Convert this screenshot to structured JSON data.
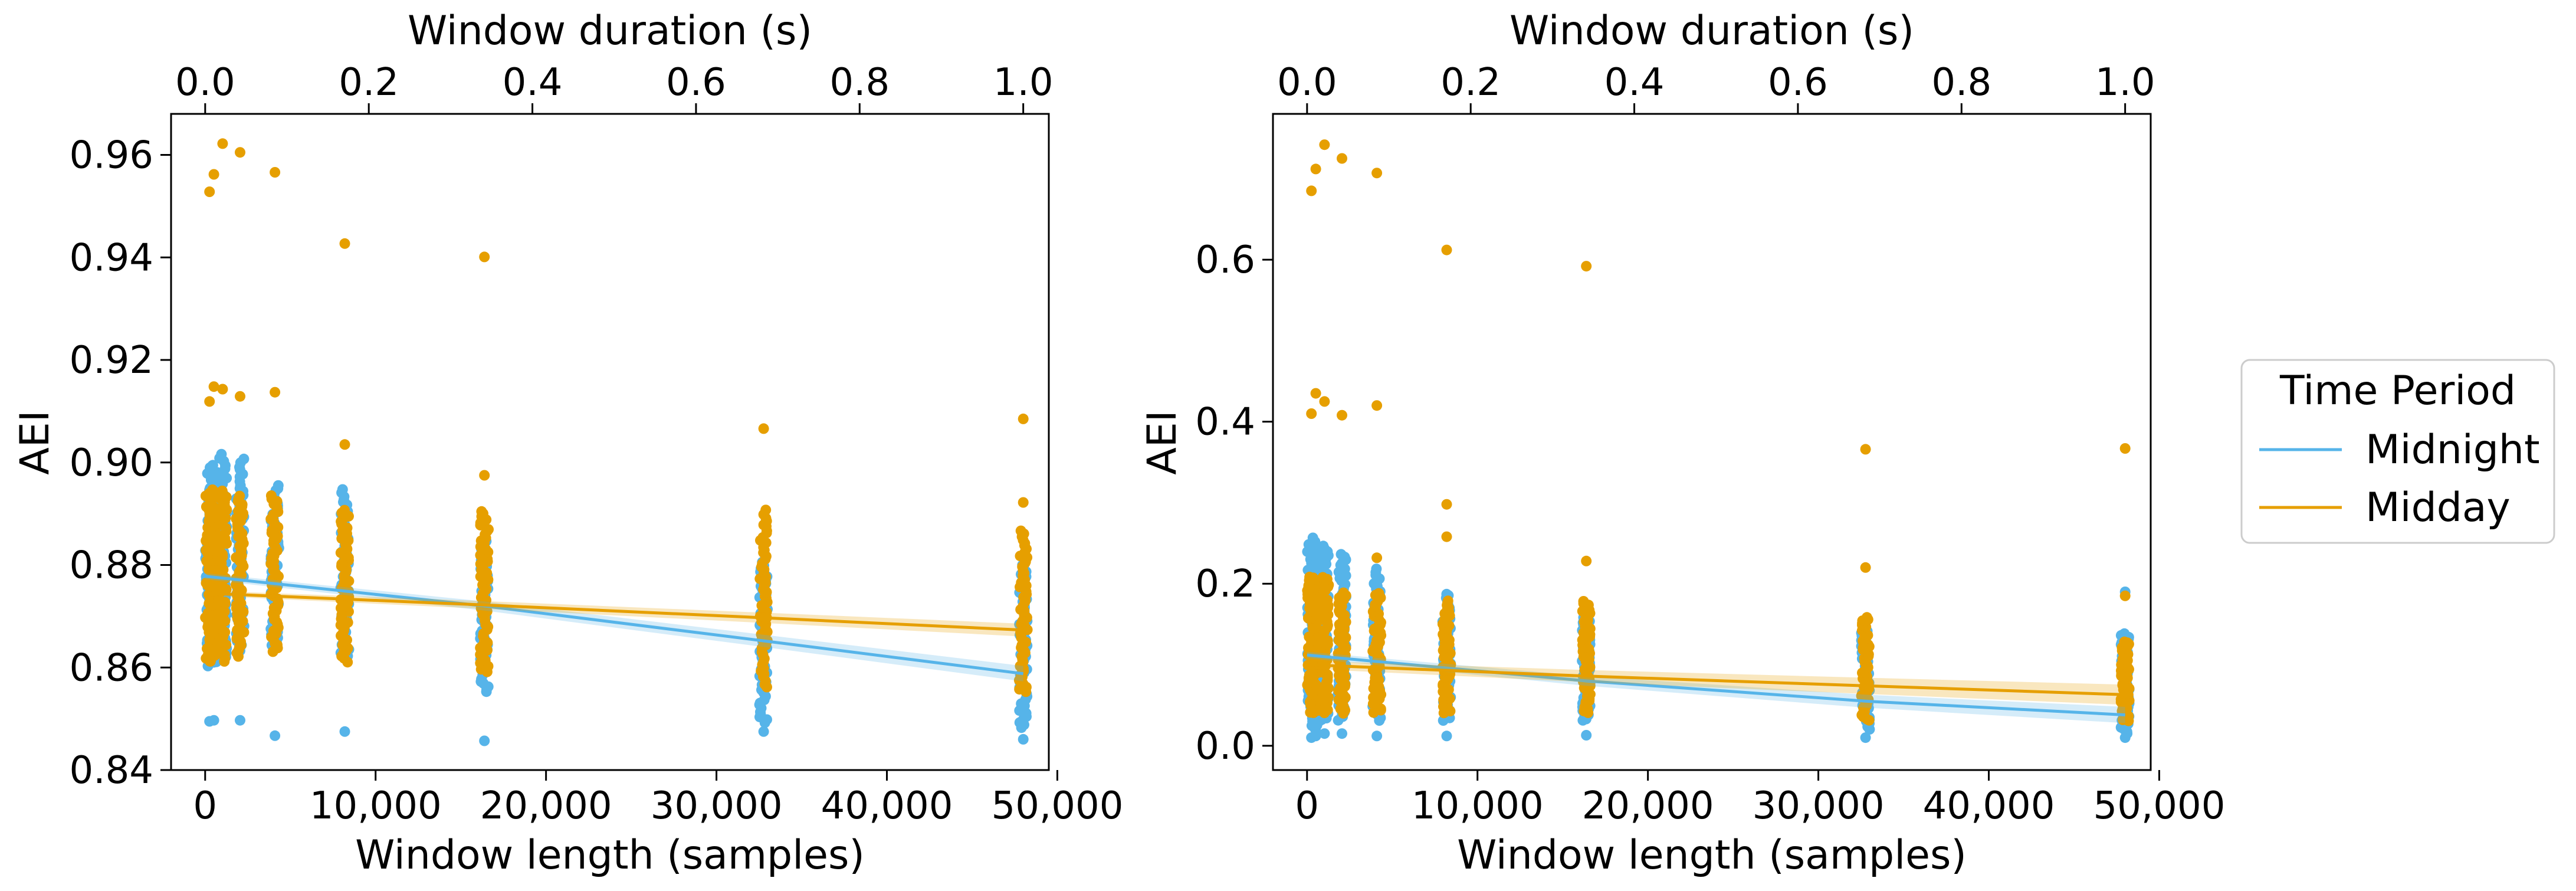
{
  "colors": {
    "midnight": "#56B4E9",
    "midday": "#E69F00"
  },
  "legend": {
    "title": "Time Period",
    "placement": "right",
    "items": [
      {
        "label": "Midnight",
        "color": "#56B4E9"
      },
      {
        "label": "Midday",
        "color": "#E69F00"
      }
    ]
  },
  "chart_data": [
    {
      "type": "scatter",
      "xlabel": "Window length (samples)",
      "x2label": "Window duration (s)",
      "ylabel": "AEI",
      "xlim": [
        -2000,
        49500
      ],
      "ylim": [
        0.84,
        0.968
      ],
      "x2lim": [
        -0.0417,
        1.03125
      ],
      "xticks": [
        0,
        10000,
        20000,
        30000,
        40000,
        50000
      ],
      "xtick_labels": [
        "0",
        "10,000",
        "20,000",
        "30,000",
        "40,000",
        "50,000"
      ],
      "x2ticks": [
        0.0,
        0.2,
        0.4,
        0.6,
        0.8,
        1.0
      ],
      "x2tick_labels": [
        "0.0",
        "0.2",
        "0.4",
        "0.6",
        "0.8",
        "1.0"
      ],
      "yticks": [
        0.84,
        0.86,
        0.88,
        0.9,
        0.92,
        0.94,
        0.96
      ],
      "ytick_labels": [
        "0.84",
        "0.86",
        "0.88",
        "0.90",
        "0.92",
        "0.94",
        "0.96"
      ],
      "grid": false,
      "series": [
        {
          "name": "Midnight",
          "color": "#56B4E9",
          "columns": [
            {
              "x": 256,
              "range": [
                0.86,
                0.9
              ],
              "outliers": [
                0.8495
              ]
            },
            {
              "x": 512,
              "range": [
                0.861,
                0.9
              ],
              "outliers": [
                0.8497
              ]
            },
            {
              "x": 1024,
              "range": [
                0.862,
                0.902
              ],
              "outliers": []
            },
            {
              "x": 2048,
              "range": [
                0.863,
                0.901
              ],
              "outliers": [
                0.8497
              ]
            },
            {
              "x": 4096,
              "range": [
                0.864,
                0.896
              ],
              "outliers": [
                0.8467
              ]
            },
            {
              "x": 8192,
              "range": [
                0.862,
                0.895
              ],
              "outliers": [
                0.8475
              ]
            },
            {
              "x": 16384,
              "range": [
                0.855,
                0.885
              ],
              "outliers": [
                0.8457
              ]
            },
            {
              "x": 32768,
              "range": [
                0.849,
                0.881
              ],
              "outliers": [
                0.8475
              ]
            },
            {
              "x": 48000,
              "range": [
                0.848,
                0.881
              ],
              "outliers": [
                0.846
              ]
            }
          ],
          "fit": {
            "x": [
              0,
              16384,
              32768,
              48000
            ],
            "y": [
              0.8778,
              0.872,
              0.8652,
              0.8588
            ],
            "ci": 0.0012
          }
        },
        {
          "name": "Midday",
          "color": "#E69F00",
          "columns": [
            {
              "x": 256,
              "range": [
                0.861,
                0.895
              ],
              "outliers": [
                0.9528,
                0.9119
              ]
            },
            {
              "x": 512,
              "range": [
                0.861,
                0.895
              ],
              "outliers": [
                0.9562,
                0.9148
              ]
            },
            {
              "x": 1024,
              "range": [
                0.861,
                0.895
              ],
              "outliers": [
                0.9622,
                0.9143
              ]
            },
            {
              "x": 2048,
              "range": [
                0.862,
                0.894
              ],
              "outliers": [
                0.9605,
                0.9129
              ]
            },
            {
              "x": 4096,
              "range": [
                0.863,
                0.894
              ],
              "outliers": [
                0.9566,
                0.9137
              ]
            },
            {
              "x": 8192,
              "range": [
                0.861,
                0.891
              ],
              "outliers": [
                0.9427,
                0.9035
              ]
            },
            {
              "x": 16384,
              "range": [
                0.859,
                0.891
              ],
              "outliers": [
                0.9401,
                0.8975
              ]
            },
            {
              "x": 32768,
              "range": [
                0.856,
                0.891
              ],
              "outliers": [
                0.9066
              ]
            },
            {
              "x": 48000,
              "range": [
                0.855,
                0.887
              ],
              "outliers": [
                0.9085,
                0.8922
              ]
            }
          ],
          "fit": {
            "x": [
              0,
              16384,
              32768,
              48000
            ],
            "y": [
              0.8745,
              0.8722,
              0.8697,
              0.8673
            ],
            "ci": 0.001
          }
        }
      ]
    },
    {
      "type": "scatter",
      "xlabel": "Window length (samples)",
      "x2label": "Window duration (s)",
      "ylabel": "AEI",
      "xlim": [
        -2000,
        49500
      ],
      "ylim": [
        -0.03,
        0.78
      ],
      "x2lim": [
        -0.0417,
        1.03125
      ],
      "xticks": [
        0,
        10000,
        20000,
        30000,
        40000,
        50000
      ],
      "xtick_labels": [
        "0",
        "10,000",
        "20,000",
        "30,000",
        "40,000",
        "50,000"
      ],
      "x2ticks": [
        0.0,
        0.2,
        0.4,
        0.6,
        0.8,
        1.0
      ],
      "x2tick_labels": [
        "0.0",
        "0.2",
        "0.4",
        "0.6",
        "0.8",
        "1.0"
      ],
      "yticks": [
        0.0,
        0.2,
        0.4,
        0.6
      ],
      "ytick_labels": [
        "0.0",
        "0.2",
        "0.4",
        "0.6"
      ],
      "grid": false,
      "series": [
        {
          "name": "Midnight",
          "color": "#56B4E9",
          "columns": [
            {
              "x": 256,
              "range": [
                0.02,
                0.26
              ],
              "outliers": [
                0.01
              ]
            },
            {
              "x": 512,
              "range": [
                0.02,
                0.25
              ],
              "outliers": [
                0.012
              ]
            },
            {
              "x": 1024,
              "range": [
                0.03,
                0.25
              ],
              "outliers": [
                0.015
              ]
            },
            {
              "x": 2048,
              "range": [
                0.03,
                0.24
              ],
              "outliers": [
                0.015
              ]
            },
            {
              "x": 4096,
              "range": [
                0.03,
                0.22
              ],
              "outliers": [
                0.012
              ]
            },
            {
              "x": 8192,
              "range": [
                0.03,
                0.19
              ],
              "outliers": [
                0.012
              ]
            },
            {
              "x": 16384,
              "range": [
                0.03,
                0.16
              ],
              "outliers": [
                0.013
              ]
            },
            {
              "x": 32768,
              "range": [
                0.02,
                0.15
              ],
              "outliers": [
                0.01
              ]
            },
            {
              "x": 48000,
              "range": [
                0.015,
                0.14
              ],
              "outliers": [
                0.19,
                0.01
              ]
            }
          ],
          "fit": {
            "x": [
              0,
              16384,
              32768,
              48000
            ],
            "y": [
              0.112,
              0.08,
              0.055,
              0.038
            ],
            "ci": 0.008
          }
        },
        {
          "name": "Midday",
          "color": "#E69F00",
          "columns": [
            {
              "x": 256,
              "range": [
                0.04,
                0.21
              ],
              "outliers": [
                0.685,
                0.41
              ]
            },
            {
              "x": 512,
              "range": [
                0.04,
                0.21
              ],
              "outliers": [
                0.712,
                0.435
              ]
            },
            {
              "x": 1024,
              "range": [
                0.04,
                0.21
              ],
              "outliers": [
                0.742,
                0.425
              ]
            },
            {
              "x": 2048,
              "range": [
                0.04,
                0.19
              ],
              "outliers": [
                0.725,
                0.408
              ]
            },
            {
              "x": 4096,
              "range": [
                0.04,
                0.19
              ],
              "outliers": [
                0.707,
                0.42,
                0.232
              ]
            },
            {
              "x": 8192,
              "range": [
                0.04,
                0.18
              ],
              "outliers": [
                0.612,
                0.298,
                0.258
              ]
            },
            {
              "x": 16384,
              "range": [
                0.04,
                0.18
              ],
              "outliers": [
                0.592,
                0.228
              ]
            },
            {
              "x": 32768,
              "range": [
                0.03,
                0.16
              ],
              "outliers": [
                0.366,
                0.22
              ]
            },
            {
              "x": 48000,
              "range": [
                0.03,
                0.13
              ],
              "outliers": [
                0.367,
                0.185
              ]
            }
          ],
          "fit": {
            "x": [
              0,
              16384,
              32768,
              48000
            ],
            "y": [
              0.1,
              0.086,
              0.074,
              0.063
            ],
            "ci": 0.01
          }
        }
      ]
    }
  ]
}
